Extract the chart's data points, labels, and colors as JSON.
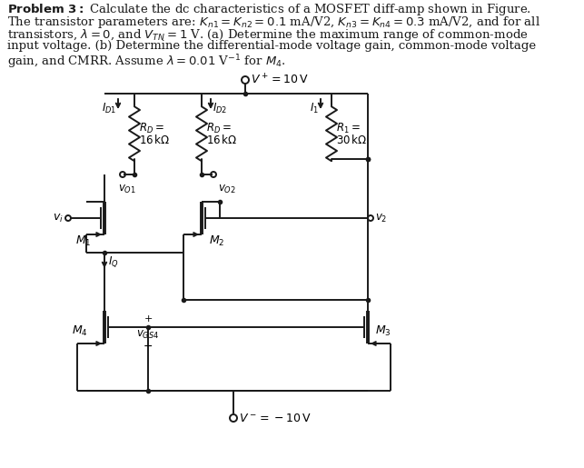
{
  "bg_color": "#ffffff",
  "line_color": "#1a1a1a",
  "text_color": "#000000",
  "lw": 1.4,
  "lw_thick": 2.8
}
